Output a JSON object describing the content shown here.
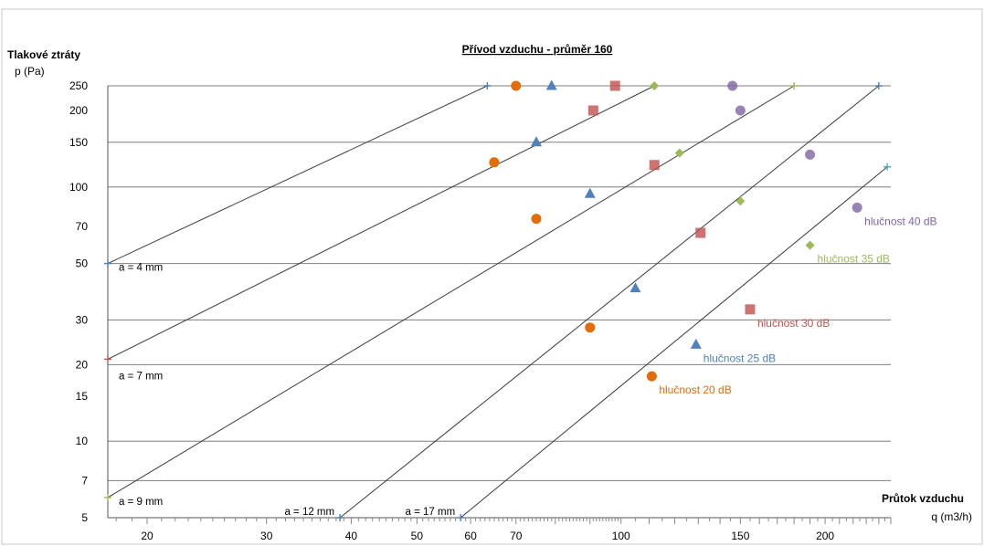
{
  "chart_data": {
    "type": "line",
    "title": "Přívod vzduchu - průměr 160",
    "ylabel": "Tlakové ztráty",
    "yunit": "p (Pa)",
    "xlabel": "Průtok vzduchu",
    "xunit": "q (m3/h)",
    "x_scale": "log",
    "y_scale": "log",
    "xlim": [
      17.5,
      250
    ],
    "ylim": [
      5,
      250
    ],
    "x_ticks": [
      "20",
      "30",
      "40",
      "50",
      "60",
      "70",
      "100",
      "150",
      "200"
    ],
    "y_ticks": [
      "250",
      "200",
      "150",
      "100",
      "70",
      "50",
      "30",
      "20",
      "15",
      "10",
      "7",
      "5"
    ],
    "grid": "horizontal",
    "gap_lines": [
      {
        "name": "a = 4 mm",
        "points": [
          [
            17.5,
            50
          ],
          [
            63.5,
            250
          ]
        ]
      },
      {
        "name": "a = 7 mm",
        "points": [
          [
            17.5,
            21
          ],
          [
            112,
            250
          ]
        ]
      },
      {
        "name": "a = 9 mm",
        "points": [
          [
            17.5,
            6
          ],
          [
            180,
            250
          ]
        ]
      },
      {
        "name": "a = 12 mm",
        "points": [
          [
            38.5,
            5
          ],
          [
            240,
            250
          ]
        ]
      },
      {
        "name": "a = 17 mm",
        "points": [
          [
            58,
            5
          ],
          [
            247,
            120
          ]
        ]
      }
    ],
    "noise_series": [
      {
        "name": "hlučnost 20 dB",
        "color": "#E36C09",
        "marker": "circle",
        "points": [
          [
            70,
            250
          ],
          [
            65,
            125
          ],
          [
            75,
            75
          ],
          [
            90,
            28
          ],
          [
            111,
            18
          ]
        ]
      },
      {
        "name": "hlučnost 25 dB",
        "color": "#4F81BD",
        "marker": "triangle",
        "points": [
          [
            79,
            250
          ],
          [
            75,
            150
          ],
          [
            90,
            94
          ],
          [
            105,
            40
          ],
          [
            129,
            24
          ]
        ]
      },
      {
        "name": "hlučnost 30 dB",
        "color": "#C0504D",
        "marker": "square",
        "points": [
          [
            98,
            250
          ],
          [
            91,
            200
          ],
          [
            112,
            122
          ],
          [
            131,
            66
          ],
          [
            155,
            33
          ]
        ]
      },
      {
        "name": "hlučnost 35 dB",
        "color": "#9BBB59",
        "marker": "diamond",
        "points": [
          [
            112,
            250
          ],
          [
            122,
            136
          ],
          [
            150,
            88
          ],
          [
            190,
            59
          ]
        ]
      },
      {
        "name": "hlučnost 40 dB",
        "color": "#8064A2",
        "marker": "circle",
        "points": [
          [
            146,
            250
          ],
          [
            150,
            200
          ],
          [
            190,
            134
          ],
          [
            223,
            83
          ]
        ]
      }
    ]
  }
}
